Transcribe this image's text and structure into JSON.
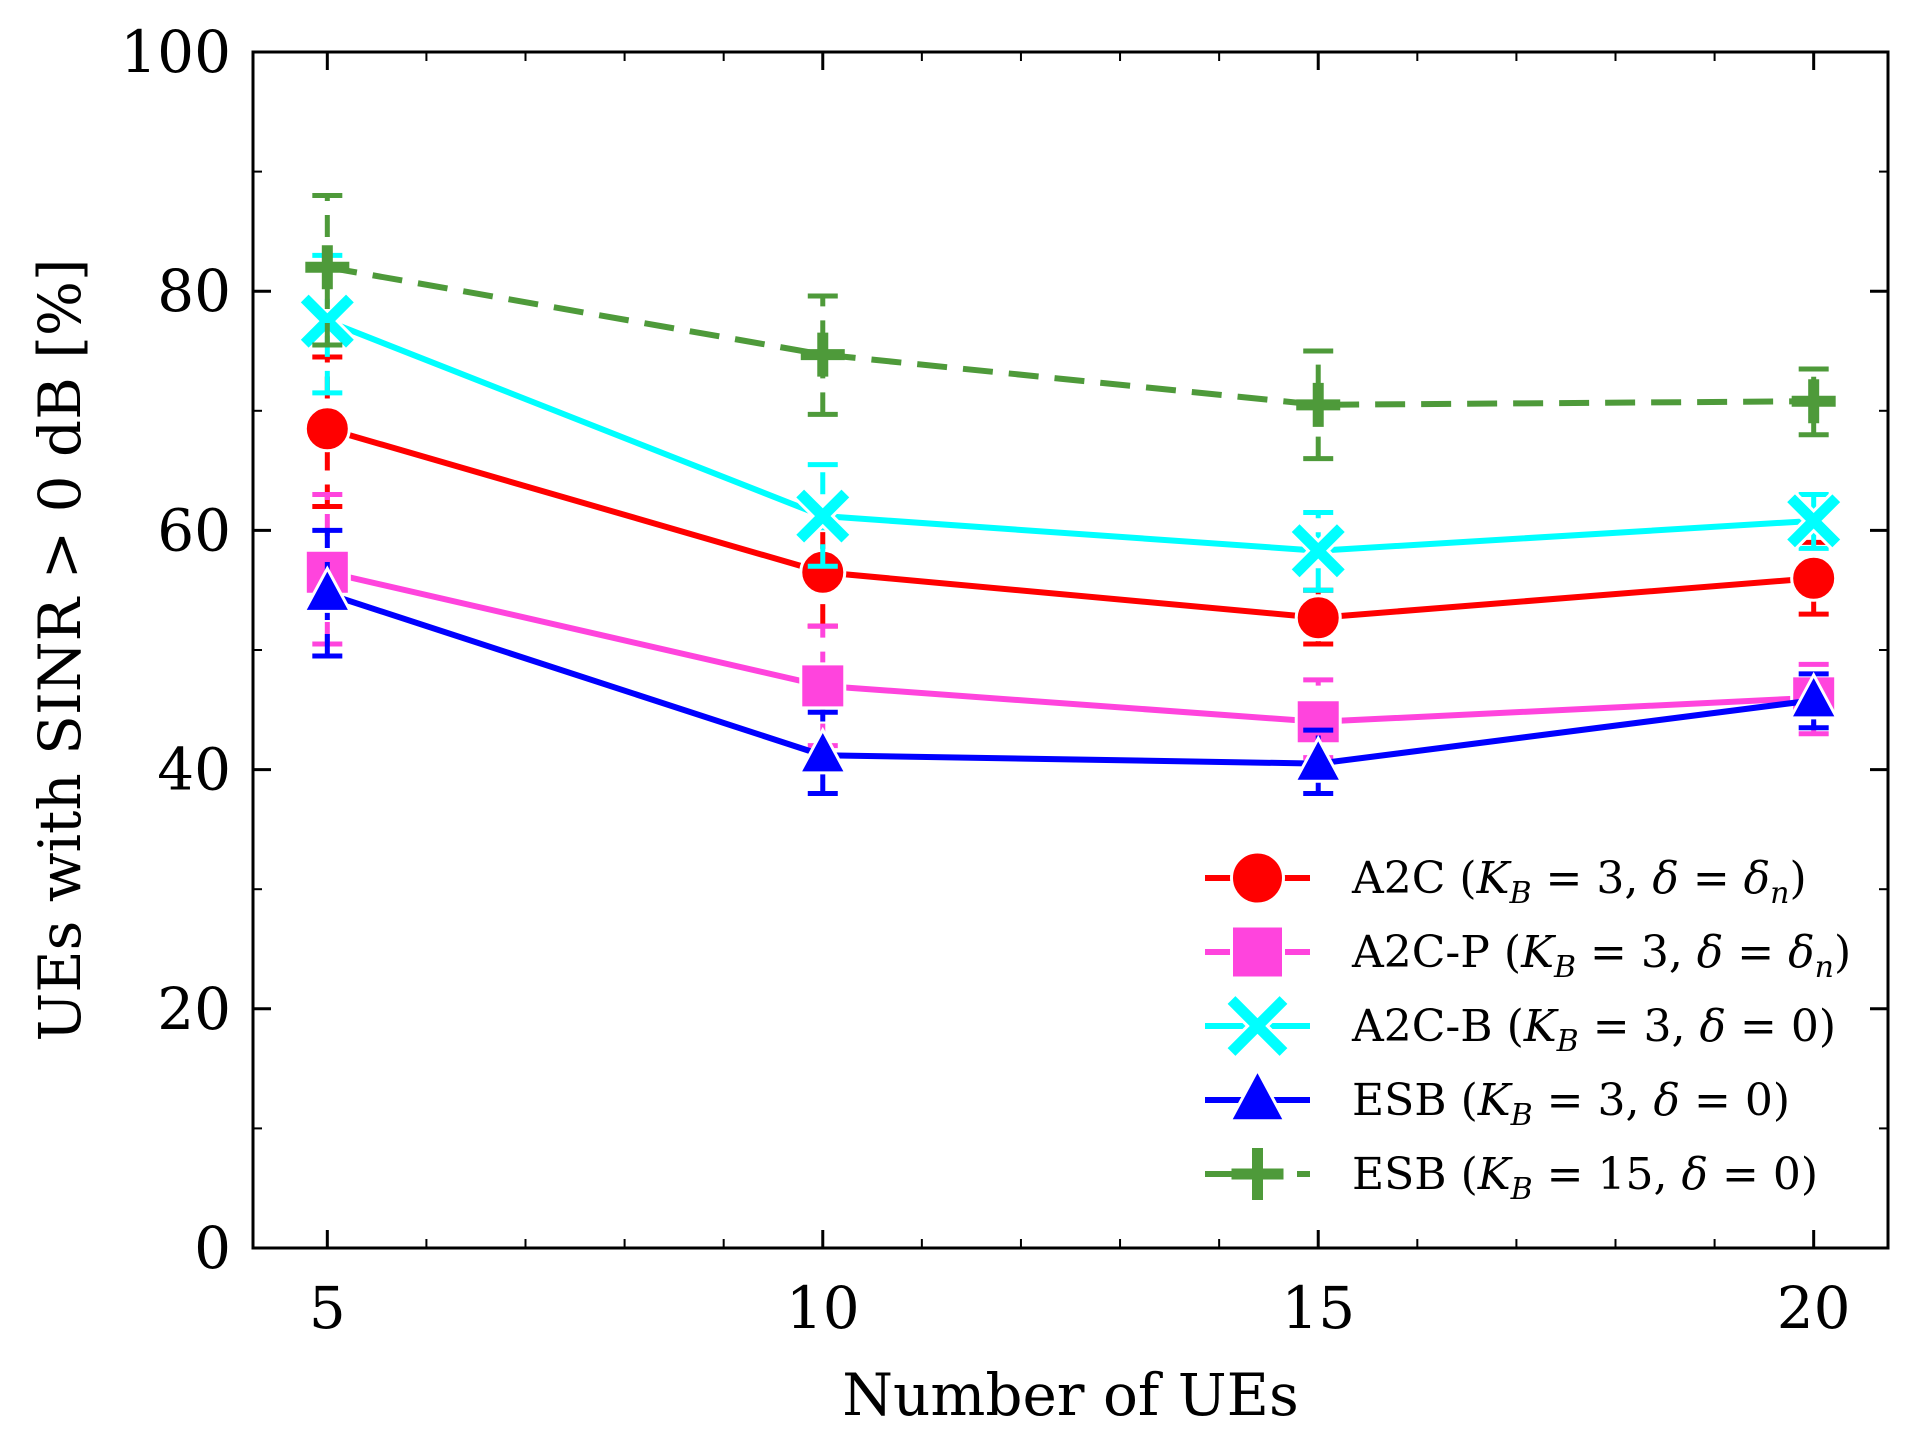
{
  "chart_data": {
    "type": "line",
    "title": "",
    "xlabel": "Number of UEs",
    "ylabel": "UEs with SINR > 0 dB [%]",
    "x": [
      5,
      10,
      15,
      20
    ],
    "xlim": [
      4.25,
      20.75
    ],
    "ylim": [
      0,
      100
    ],
    "x_ticks": [
      5,
      10,
      15,
      20
    ],
    "y_ticks": [
      0,
      20,
      40,
      60,
      80,
      100
    ],
    "grid": false,
    "legend_position": "bottom-right",
    "series": [
      {
        "name": "A2C (K_B = 3, δ = δ_n)",
        "color": "#ff0000",
        "marker": "circle",
        "linestyle": "solid",
        "values": [
          68.5,
          56.5,
          52.7,
          56.0
        ],
        "err_low": [
          62.0,
          52.0,
          50.5,
          53.0
        ],
        "err_high": [
          74.5,
          60.5,
          55.0,
          59.0
        ]
      },
      {
        "name": "A2C-P (K_B = 3, δ = δ_n)",
        "color": "#ff44dd",
        "marker": "square",
        "linestyle": "solid",
        "values": [
          56.5,
          47.0,
          44.0,
          46.0
        ],
        "err_low": [
          50.5,
          42.0,
          41.0,
          43.0
        ],
        "err_high": [
          63.0,
          52.0,
          47.5,
          48.8
        ]
      },
      {
        "name": "A2C-B (K_B = 3, δ = 0)",
        "color": "#00ffff",
        "marker": "x",
        "linestyle": "solid",
        "values": [
          77.5,
          61.2,
          58.3,
          60.8
        ],
        "err_low": [
          71.5,
          57.0,
          55.0,
          58.5
        ],
        "err_high": [
          83.0,
          65.5,
          61.5,
          63.0
        ]
      },
      {
        "name": "ESB (K_B = 3, δ = 0)",
        "color": "#0000ff",
        "marker": "triangle",
        "linestyle": "solid",
        "values": [
          54.7,
          41.2,
          40.5,
          45.8
        ],
        "err_low": [
          49.5,
          38.0,
          38.0,
          43.5
        ],
        "err_high": [
          60.0,
          44.8,
          43.3,
          48.0
        ]
      },
      {
        "name": "ESB (K_B = 15, δ = 0)",
        "color": "#4e9a3a",
        "marker": "plus",
        "linestyle": "dashed",
        "values": [
          82.0,
          74.7,
          70.5,
          70.8
        ],
        "err_low": [
          75.5,
          69.7,
          66.0,
          68.0
        ],
        "err_high": [
          88.0,
          79.6,
          75.0,
          73.5
        ]
      }
    ]
  },
  "legend": {
    "entries": [
      {
        "prefix": "A2C (",
        "k_sub": "B",
        "eq1": " = 3, ",
        "delta_rhs": "δ",
        "delta_sub": "n",
        "suffix": ")"
      },
      {
        "prefix": "A2C-P (",
        "k_sub": "B",
        "eq1": " = 3, ",
        "delta_rhs": "δ",
        "delta_sub": "n",
        "suffix": ")"
      },
      {
        "prefix": "A2C-B (",
        "k_sub": "B",
        "eq1": " = 3, ",
        "delta_rhs": "0",
        "delta_sub": "",
        "suffix": ")"
      },
      {
        "prefix": "ESB (",
        "k_sub": "B",
        "eq1": " = 3, ",
        "delta_rhs": "0",
        "delta_sub": "",
        "suffix": ")"
      },
      {
        "prefix": "ESB (",
        "k_sub": "B",
        "eq1": " = 15, ",
        "delta_rhs": "0",
        "delta_sub": "",
        "suffix": ")"
      }
    ]
  }
}
